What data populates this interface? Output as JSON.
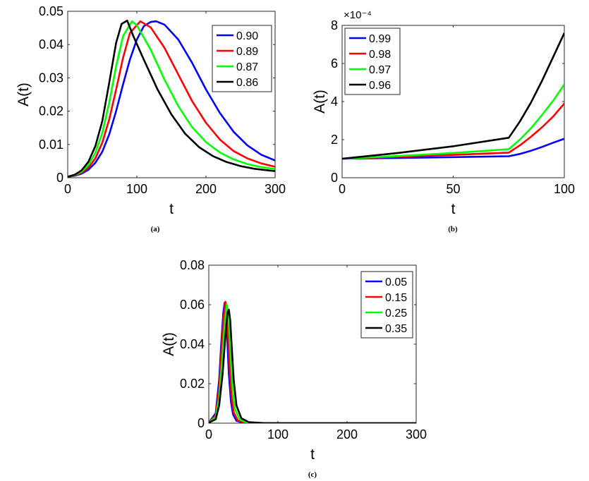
{
  "chart_data": [
    {
      "panel": "(a)",
      "type": "line",
      "xlabel": "t",
      "ylabel": "A(t)",
      "xlim": [
        0,
        300
      ],
      "ylim": [
        0,
        0.05
      ],
      "xticks": [
        0,
        100,
        200,
        300
      ],
      "xtick_labels": [
        "0",
        "100",
        "200",
        "300"
      ],
      "yticks": [
        0,
        0.01,
        0.02,
        0.03,
        0.04,
        0.05
      ],
      "ytick_labels": [
        "0",
        "0.01",
        "0.02",
        "0.03",
        "0.04",
        "0.05"
      ],
      "exponent_label": "",
      "legend_position": "top-right",
      "series": [
        {
          "name": "0.90",
          "color": "#0000ff",
          "x": [
            0,
            10,
            20,
            30,
            40,
            50,
            60,
            70,
            80,
            90,
            100,
            110,
            120,
            128,
            140,
            160,
            180,
            200,
            220,
            240,
            260,
            280,
            300
          ],
          "y": [
            0.0003,
            0.0006,
            0.0012,
            0.0024,
            0.0045,
            0.0078,
            0.013,
            0.02,
            0.028,
            0.0355,
            0.0415,
            0.0455,
            0.0468,
            0.047,
            0.046,
            0.0415,
            0.0345,
            0.0265,
            0.0195,
            0.0138,
            0.0097,
            0.0069,
            0.0052
          ]
        },
        {
          "name": "0.89",
          "color": "#ff0000",
          "x": [
            0,
            10,
            20,
            30,
            40,
            50,
            60,
            70,
            80,
            90,
            105,
            120,
            140,
            160,
            180,
            200,
            220,
            240,
            260,
            280,
            300
          ],
          "y": [
            0.0003,
            0.0007,
            0.0015,
            0.003,
            0.0058,
            0.0105,
            0.0175,
            0.0265,
            0.036,
            0.0435,
            0.047,
            0.0452,
            0.039,
            0.031,
            0.023,
            0.0165,
            0.0115,
            0.008,
            0.0058,
            0.0043,
            0.0033
          ]
        },
        {
          "name": "0.87",
          "color": "#00ff00",
          "x": [
            0,
            10,
            20,
            30,
            40,
            50,
            60,
            70,
            80,
            93,
            100,
            120,
            140,
            160,
            180,
            200,
            220,
            240,
            260,
            280,
            300
          ],
          "y": [
            0.0003,
            0.0008,
            0.0018,
            0.0038,
            0.0075,
            0.0135,
            0.0225,
            0.0335,
            0.0425,
            0.047,
            0.0458,
            0.0385,
            0.0295,
            0.0215,
            0.0152,
            0.0107,
            0.0076,
            0.0055,
            0.0041,
            0.0032,
            0.0026
          ]
        },
        {
          "name": "0.86",
          "color": "#000000",
          "x": [
            0,
            10,
            20,
            30,
            40,
            50,
            60,
            70,
            78,
            86,
            95,
            110,
            130,
            150,
            170,
            190,
            210,
            230,
            250,
            270,
            290,
            300
          ],
          "y": [
            0.0003,
            0.0009,
            0.0022,
            0.0048,
            0.0095,
            0.017,
            0.0285,
            0.0405,
            0.0462,
            0.0472,
            0.0425,
            0.0355,
            0.0265,
            0.019,
            0.0132,
            0.0092,
            0.0065,
            0.0047,
            0.0035,
            0.0027,
            0.0022,
            0.002
          ]
        }
      ]
    },
    {
      "panel": "(b)",
      "type": "line",
      "xlabel": "t",
      "ylabel": "A(t)",
      "xlim": [
        0,
        100
      ],
      "ylim": [
        0,
        8
      ],
      "xticks": [
        0,
        50,
        100
      ],
      "xtick_labels": [
        "0",
        "50",
        "100"
      ],
      "yticks": [
        0,
        2,
        4,
        6,
        8
      ],
      "ytick_labels": [
        "0",
        "2",
        "4",
        "6",
        "8"
      ],
      "exponent_label": "×10⁻⁴",
      "legend_position": "top-left",
      "series": [
        {
          "name": "0.99",
          "color": "#0000ff",
          "x": [
            0,
            25,
            50,
            75,
            80,
            85,
            90,
            95,
            100
          ],
          "y": [
            1.0,
            1.04,
            1.08,
            1.13,
            1.25,
            1.42,
            1.62,
            1.84,
            2.05
          ]
        },
        {
          "name": "0.98",
          "color": "#ff0000",
          "x": [
            0,
            25,
            50,
            75,
            80,
            85,
            90,
            95,
            100
          ],
          "y": [
            1.0,
            1.1,
            1.2,
            1.32,
            1.7,
            2.15,
            2.65,
            3.22,
            3.9
          ]
        },
        {
          "name": "0.97",
          "color": "#00ff00",
          "x": [
            0,
            25,
            50,
            75,
            80,
            85,
            90,
            95,
            100
          ],
          "y": [
            1.0,
            1.14,
            1.3,
            1.5,
            2.0,
            2.6,
            3.3,
            4.05,
            4.9
          ]
        },
        {
          "name": "0.96",
          "color": "#000000",
          "x": [
            0,
            25,
            50,
            75,
            80,
            85,
            90,
            95,
            100
          ],
          "y": [
            1.0,
            1.3,
            1.65,
            2.1,
            2.95,
            3.95,
            5.1,
            6.35,
            7.6
          ]
        }
      ]
    },
    {
      "panel": "(c)",
      "type": "line",
      "xlabel": "t",
      "ylabel": "A(t)",
      "xlim": [
        0,
        300
      ],
      "ylim": [
        0,
        0.08
      ],
      "xticks": [
        0,
        100,
        200,
        300
      ],
      "xtick_labels": [
        "0",
        "100",
        "200",
        "300"
      ],
      "yticks": [
        0,
        0.02,
        0.04,
        0.06,
        0.08
      ],
      "ytick_labels": [
        "0",
        "0.02",
        "0.04",
        "0.06",
        "0.08"
      ],
      "exponent_label": "",
      "legend_position": "top-right",
      "series": [
        {
          "name": "0.05",
          "color": "#0000ff",
          "x": [
            0,
            10,
            15,
            18,
            21,
            23,
            25,
            27,
            29,
            32,
            35,
            40,
            50,
            70,
            100,
            300
          ],
          "y": [
            0.0003,
            0.005,
            0.022,
            0.04,
            0.056,
            0.061,
            0.055,
            0.04,
            0.025,
            0.011,
            0.0045,
            0.0012,
            0.0002,
            2e-05,
            0,
            0
          ]
        },
        {
          "name": "0.15",
          "color": "#ff0000",
          "x": [
            0,
            10,
            15,
            18,
            21,
            24,
            26,
            28,
            30,
            33,
            36,
            42,
            52,
            75,
            100,
            300
          ],
          "y": [
            0.0003,
            0.004,
            0.018,
            0.035,
            0.052,
            0.0615,
            0.057,
            0.044,
            0.029,
            0.013,
            0.0055,
            0.0014,
            0.0003,
            3e-05,
            0,
            0
          ]
        },
        {
          "name": "0.25",
          "color": "#00ff00",
          "x": [
            0,
            10,
            15,
            19,
            23,
            26,
            28,
            30,
            32,
            35,
            38,
            45,
            55,
            80,
            110,
            300
          ],
          "y": [
            0.0003,
            0.003,
            0.013,
            0.03,
            0.05,
            0.06,
            0.056,
            0.045,
            0.031,
            0.015,
            0.007,
            0.0018,
            0.0004,
            5e-05,
            0,
            0
          ]
        },
        {
          "name": "0.35",
          "color": "#000000",
          "x": [
            0,
            10,
            15,
            20,
            24,
            27,
            29,
            31,
            33,
            36,
            40,
            47,
            58,
            80,
            110,
            300
          ],
          "y": [
            0.0003,
            0.002,
            0.009,
            0.025,
            0.044,
            0.056,
            0.0575,
            0.052,
            0.04,
            0.022,
            0.009,
            0.0025,
            0.0005,
            5e-05,
            0,
            0
          ]
        }
      ]
    }
  ]
}
